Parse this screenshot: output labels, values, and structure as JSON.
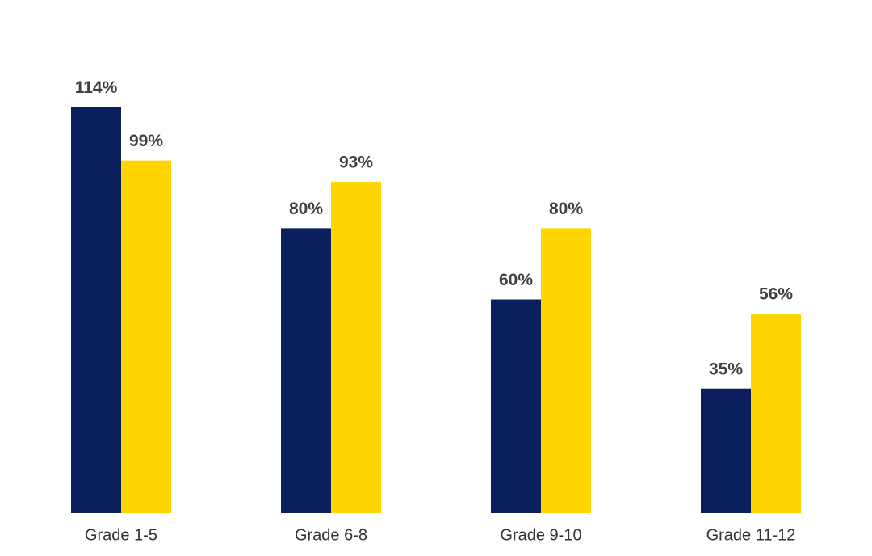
{
  "chart_data": {
    "type": "bar",
    "categories": [
      "Grade 1-5",
      "Grade 6-8",
      "Grade 9-10",
      "Grade 11-12"
    ],
    "series": [
      {
        "color": "#0a1f5c",
        "values": [
          114,
          80,
          60,
          35
        ],
        "value_labels": [
          "114%",
          "80%",
          "60%",
          "35%"
        ]
      },
      {
        "color": "#ffd500",
        "values": [
          99,
          93,
          80,
          56
        ],
        "value_labels": [
          "99%",
          "93%",
          "80%",
          "56%"
        ]
      }
    ],
    "ylim": [
      0,
      125
    ],
    "grid": false
  }
}
